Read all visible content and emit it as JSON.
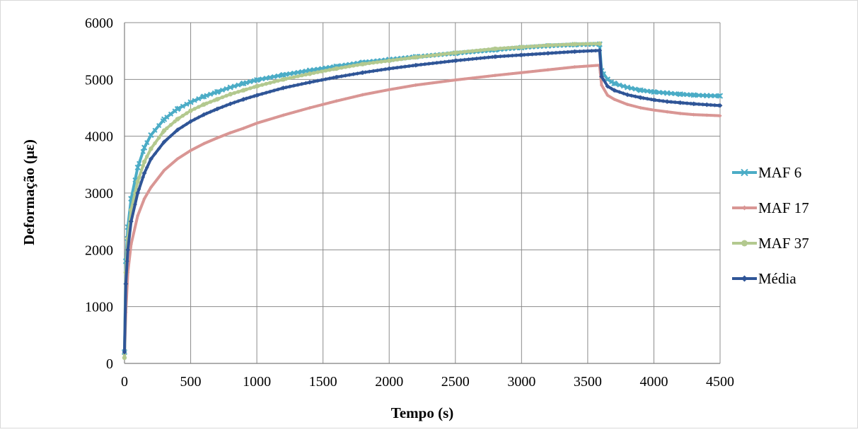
{
  "chart_data": {
    "type": "line",
    "title": "",
    "xlabel": "Tempo (s)",
    "ylabel": "Deformação (με)",
    "xlim": [
      0,
      4500
    ],
    "ylim": [
      0,
      6000
    ],
    "xticks": [
      0,
      500,
      1000,
      1500,
      2000,
      2500,
      3000,
      3500,
      4000,
      4500
    ],
    "yticks": [
      0,
      1000,
      2000,
      3000,
      4000,
      5000,
      6000
    ],
    "grid": true,
    "legend_position": "right",
    "series": [
      {
        "name": "MAF 6",
        "color": "#4BACC6",
        "marker": "x",
        "points": [
          [
            0,
            200
          ],
          [
            10,
            1800
          ],
          [
            25,
            2400
          ],
          [
            50,
            2900
          ],
          [
            100,
            3450
          ],
          [
            150,
            3800
          ],
          [
            200,
            4020
          ],
          [
            300,
            4300
          ],
          [
            400,
            4480
          ],
          [
            500,
            4600
          ],
          [
            600,
            4700
          ],
          [
            700,
            4780
          ],
          [
            800,
            4860
          ],
          [
            900,
            4930
          ],
          [
            1000,
            4990
          ],
          [
            1200,
            5080
          ],
          [
            1400,
            5160
          ],
          [
            1600,
            5230
          ],
          [
            1800,
            5300
          ],
          [
            2000,
            5350
          ],
          [
            2200,
            5400
          ],
          [
            2500,
            5460
          ],
          [
            2800,
            5520
          ],
          [
            3000,
            5560
          ],
          [
            3200,
            5590
          ],
          [
            3400,
            5610
          ],
          [
            3590,
            5620
          ],
          [
            3605,
            5150
          ],
          [
            3650,
            5000
          ],
          [
            3700,
            4930
          ],
          [
            3800,
            4860
          ],
          [
            3900,
            4810
          ],
          [
            4000,
            4780
          ],
          [
            4100,
            4760
          ],
          [
            4200,
            4740
          ],
          [
            4300,
            4725
          ],
          [
            4400,
            4715
          ],
          [
            4500,
            4710
          ]
        ]
      },
      {
        "name": "MAF 17",
        "color": "#D99694",
        "marker": "diamond-small",
        "points": [
          [
            0,
            150
          ],
          [
            10,
            900
          ],
          [
            25,
            1600
          ],
          [
            50,
            2100
          ],
          [
            100,
            2600
          ],
          [
            150,
            2900
          ],
          [
            200,
            3100
          ],
          [
            300,
            3400
          ],
          [
            400,
            3600
          ],
          [
            500,
            3750
          ],
          [
            600,
            3870
          ],
          [
            700,
            3970
          ],
          [
            800,
            4060
          ],
          [
            900,
            4140
          ],
          [
            1000,
            4230
          ],
          [
            1200,
            4370
          ],
          [
            1400,
            4500
          ],
          [
            1600,
            4620
          ],
          [
            1800,
            4730
          ],
          [
            2000,
            4820
          ],
          [
            2200,
            4900
          ],
          [
            2500,
            4990
          ],
          [
            2800,
            5070
          ],
          [
            3000,
            5120
          ],
          [
            3200,
            5170
          ],
          [
            3400,
            5220
          ],
          [
            3590,
            5250
          ],
          [
            3605,
            4900
          ],
          [
            3650,
            4720
          ],
          [
            3700,
            4650
          ],
          [
            3800,
            4560
          ],
          [
            3900,
            4500
          ],
          [
            4000,
            4460
          ],
          [
            4100,
            4430
          ],
          [
            4200,
            4400
          ],
          [
            4300,
            4380
          ],
          [
            4400,
            4370
          ],
          [
            4500,
            4360
          ]
        ]
      },
      {
        "name": "MAF 37",
        "color": "#B3C98F",
        "marker": "circle",
        "points": [
          [
            0,
            100
          ],
          [
            10,
            1600
          ],
          [
            25,
            2200
          ],
          [
            50,
            2700
          ],
          [
            100,
            3200
          ],
          [
            150,
            3550
          ],
          [
            200,
            3780
          ],
          [
            300,
            4100
          ],
          [
            400,
            4300
          ],
          [
            500,
            4450
          ],
          [
            600,
            4560
          ],
          [
            700,
            4650
          ],
          [
            800,
            4740
          ],
          [
            900,
            4810
          ],
          [
            1000,
            4880
          ],
          [
            1200,
            5000
          ],
          [
            1400,
            5100
          ],
          [
            1600,
            5190
          ],
          [
            1800,
            5270
          ],
          [
            2000,
            5330
          ],
          [
            2200,
            5390
          ],
          [
            2500,
            5470
          ],
          [
            2800,
            5540
          ],
          [
            3000,
            5570
          ],
          [
            3200,
            5600
          ],
          [
            3400,
            5620
          ],
          [
            3590,
            5630
          ]
        ]
      },
      {
        "name": "Média",
        "color": "#2F5597",
        "marker": "diamond",
        "points": [
          [
            0,
            200
          ],
          [
            10,
            1400
          ],
          [
            25,
            2000
          ],
          [
            50,
            2500
          ],
          [
            100,
            3000
          ],
          [
            150,
            3350
          ],
          [
            200,
            3600
          ],
          [
            300,
            3900
          ],
          [
            400,
            4110
          ],
          [
            500,
            4260
          ],
          [
            600,
            4380
          ],
          [
            700,
            4480
          ],
          [
            800,
            4570
          ],
          [
            900,
            4650
          ],
          [
            1000,
            4720
          ],
          [
            1200,
            4850
          ],
          [
            1400,
            4950
          ],
          [
            1600,
            5040
          ],
          [
            1800,
            5120
          ],
          [
            2000,
            5190
          ],
          [
            2200,
            5250
          ],
          [
            2500,
            5330
          ],
          [
            2800,
            5400
          ],
          [
            3000,
            5430
          ],
          [
            3200,
            5460
          ],
          [
            3400,
            5490
          ],
          [
            3590,
            5510
          ],
          [
            3605,
            5050
          ],
          [
            3650,
            4880
          ],
          [
            3700,
            4810
          ],
          [
            3800,
            4730
          ],
          [
            3900,
            4680
          ],
          [
            4000,
            4640
          ],
          [
            4100,
            4610
          ],
          [
            4200,
            4590
          ],
          [
            4300,
            4570
          ],
          [
            4400,
            4555
          ],
          [
            4500,
            4540
          ]
        ]
      }
    ]
  }
}
